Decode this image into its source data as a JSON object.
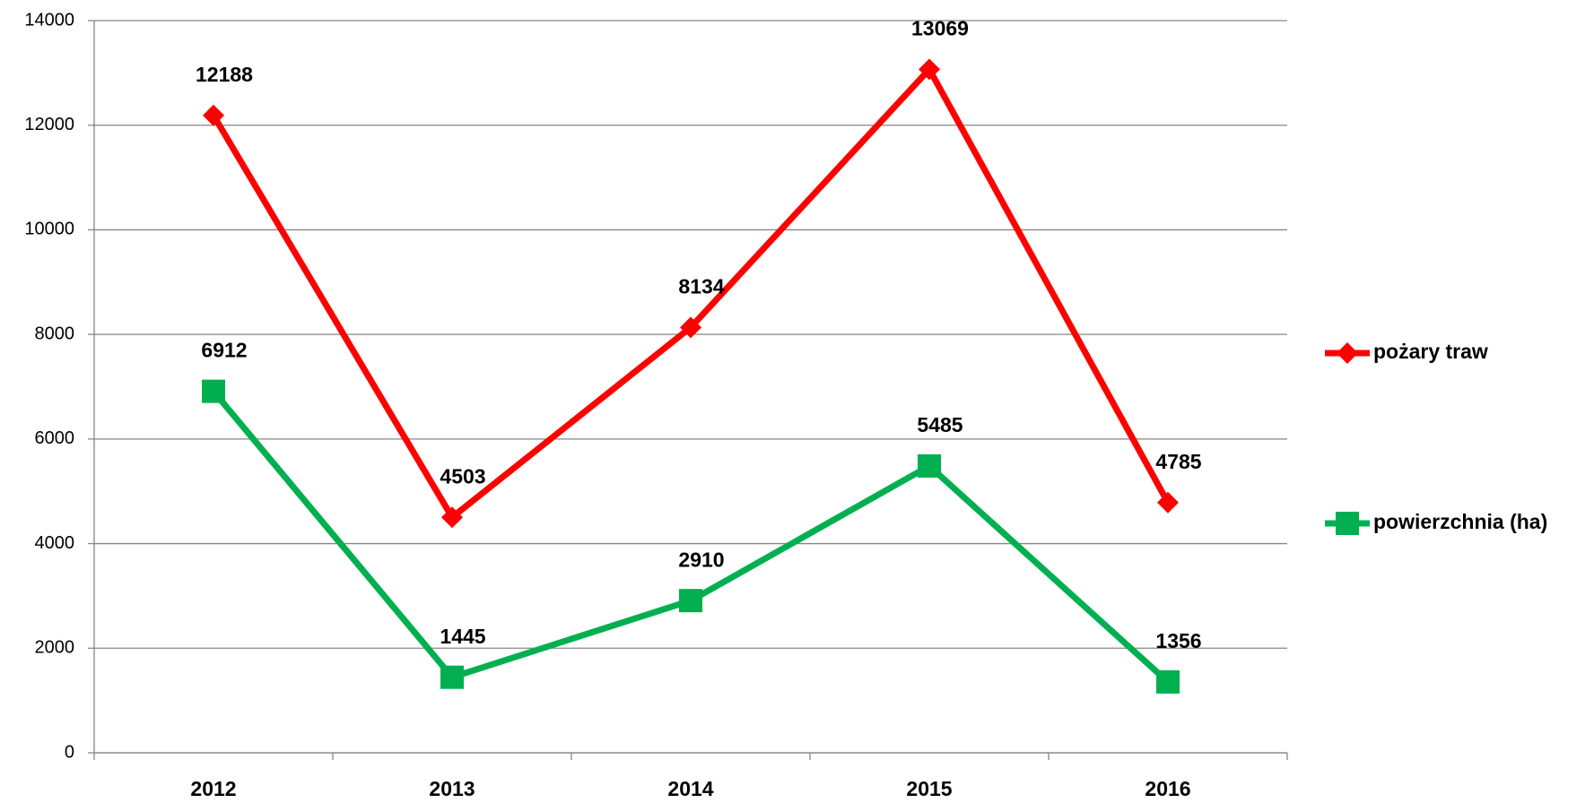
{
  "chart_data": {
    "type": "line",
    "categories": [
      "2012",
      "2013",
      "2014",
      "2015",
      "2016"
    ],
    "series": [
      {
        "name": "pożary traw",
        "color": "#ff0000",
        "marker": "diamond",
        "values": [
          12188,
          4503,
          8134,
          13069,
          4785
        ]
      },
      {
        "name": "powierzchnia (ha)",
        "color": "#00b050",
        "marker": "square",
        "values": [
          6912,
          1445,
          2910,
          5485,
          1356
        ]
      }
    ],
    "ylim": [
      0,
      14000
    ],
    "yticks": [
      0,
      2000,
      4000,
      6000,
      8000,
      10000,
      12000,
      14000
    ],
    "grid": true,
    "legend": "right",
    "data_labels": true
  }
}
